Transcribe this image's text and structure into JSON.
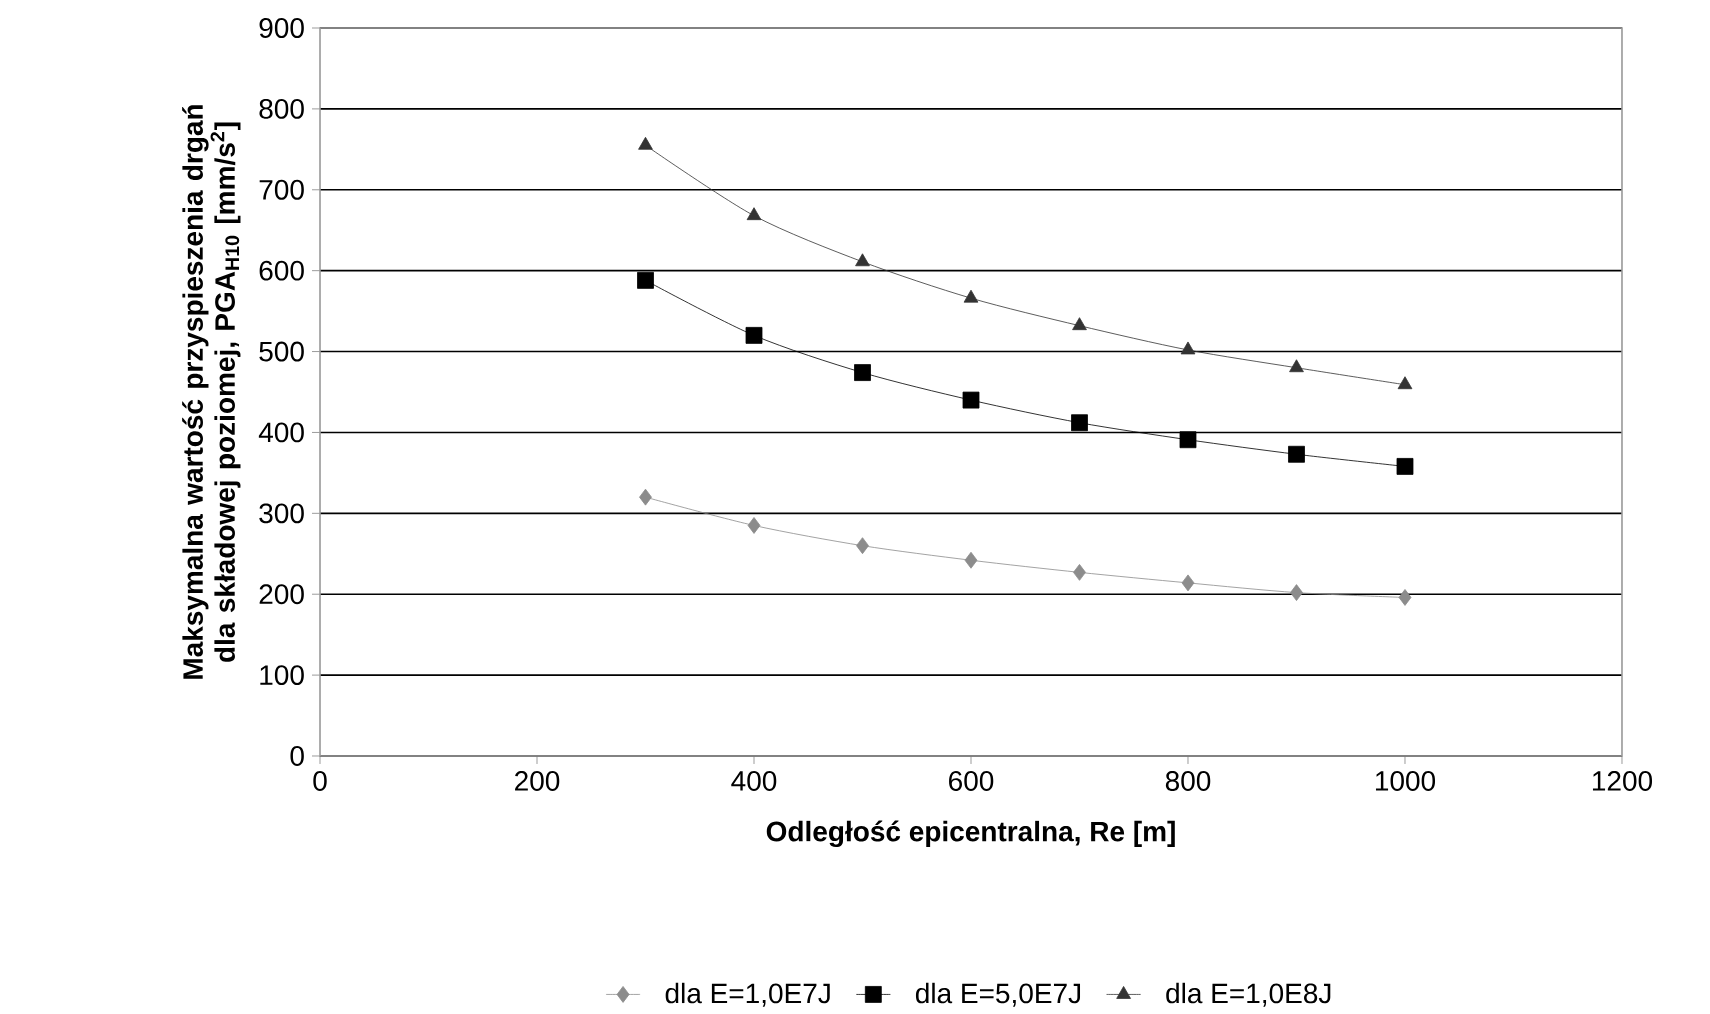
{
  "chart_data": {
    "type": "line",
    "xlabel": "Odległość epicentralna, Re [m]",
    "ylabel": "Maksymalna wartość przyspieszenia drgań dla składowej poziomej, PGA$_{H10}$ [mm/s$^{2}$]",
    "x": [
      300,
      400,
      500,
      600,
      700,
      800,
      900,
      1000
    ],
    "series": [
      {
        "name": "dla E=1,0E7J",
        "color": "#8c8c8c",
        "marker": "diamond",
        "values": [
          320,
          285,
          260,
          242,
          227,
          214,
          202,
          196
        ]
      },
      {
        "name": "dla E=5,0E7J",
        "color": "#000000",
        "marker": "square",
        "values": [
          588,
          520,
          474,
          440,
          412,
          391,
          373,
          358
        ]
      },
      {
        "name": "dla E=1,0E8J",
        "color": "#333333",
        "marker": "triangle",
        "values": [
          755,
          668,
          611,
          566,
          532,
          502,
          480,
          459
        ]
      }
    ],
    "xlim": [
      0,
      1200
    ],
    "ylim": [
      0,
      900
    ],
    "xticks": [
      0,
      200,
      400,
      600,
      800,
      1000,
      1200
    ],
    "yticks": [
      0,
      100,
      200,
      300,
      400,
      500,
      600,
      700,
      800,
      900
    ],
    "grid": "y",
    "legend": "bottom",
    "line_style": "solid"
  }
}
